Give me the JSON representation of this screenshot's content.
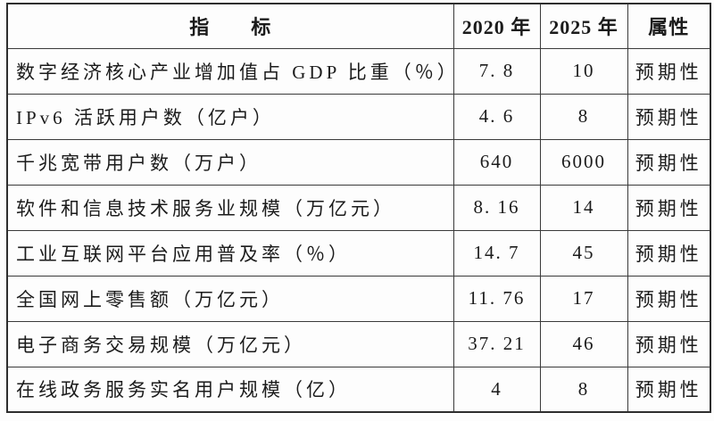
{
  "page": {
    "background_color": "#fdfdfd",
    "text_color": "#1b1b1b",
    "border_color": "#2e2e2e"
  },
  "table": {
    "header": {
      "indicator": "指　　标",
      "y2020": "2020 年",
      "y2025": "2025 年",
      "attribute": "属性"
    },
    "rows": [
      {
        "indicator": "数字经济核心产业增加值占 GDP 比重（％）",
        "v2020": "7. 8",
        "v2025": "10",
        "attr": "预期性"
      },
      {
        "indicator": "IPv6 活跃用户数（亿户）",
        "v2020": "4. 6",
        "v2025": "8",
        "attr": "预期性"
      },
      {
        "indicator": "千兆宽带用户数（万户）",
        "v2020": "640",
        "v2025": "6000",
        "attr": "预期性"
      },
      {
        "indicator": "软件和信息技术服务业规模（万亿元）",
        "v2020": "8. 16",
        "v2025": "14",
        "attr": "预期性"
      },
      {
        "indicator": "工业互联网平台应用普及率（％）",
        "v2020": "14. 7",
        "v2025": "45",
        "attr": "预期性"
      },
      {
        "indicator": "全国网上零售额（万亿元）",
        "v2020": "11. 76",
        "v2025": "17",
        "attr": "预期性"
      },
      {
        "indicator": "电子商务交易规模（万亿元）",
        "v2020": "37. 21",
        "v2025": "46",
        "attr": "预期性"
      },
      {
        "indicator": "在线政务服务实名用户规模（亿）",
        "v2020": "4",
        "v2025": "8",
        "attr": "预期性"
      }
    ]
  }
}
